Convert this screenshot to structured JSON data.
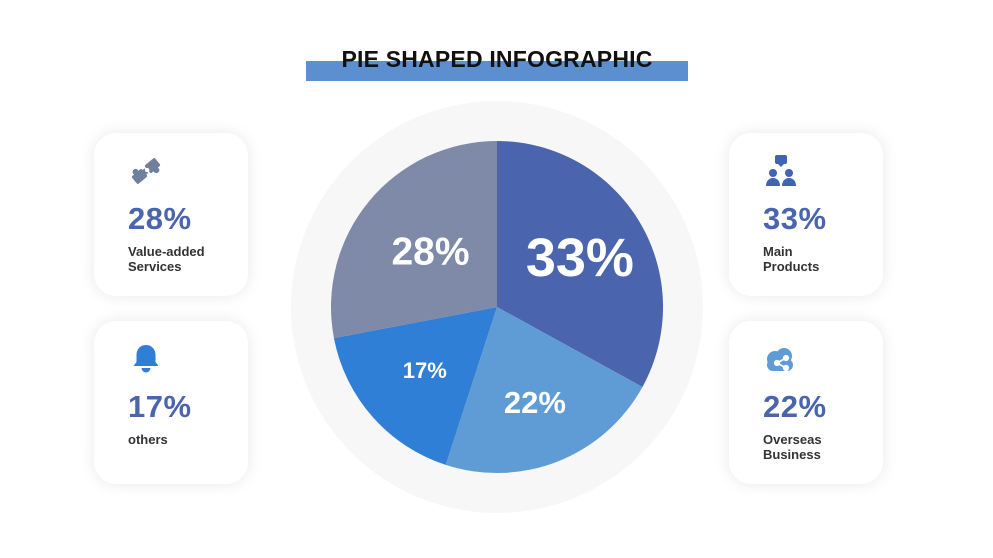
{
  "title": "PIE SHAPED INFOGRAPHIC",
  "cards": {
    "value_added": {
      "percent": "28%",
      "label": "Value-added\nServices",
      "icon": "puzzle-icon"
    },
    "others": {
      "percent": "17%",
      "label": "others",
      "icon": "bell-icon"
    },
    "main_products": {
      "percent": "33%",
      "label": "Main\nProducts",
      "icon": "team-icon"
    },
    "overseas": {
      "percent": "22%",
      "label": "Overseas\nBusiness",
      "icon": "cloud-share-icon"
    }
  },
  "colors": {
    "accent": "#5b8fd0",
    "number": "#4a64ad",
    "icon": "#3f63b5",
    "puzzle_icon": "#6f7f9e"
  },
  "chart_data": {
    "type": "pie",
    "slices": [
      {
        "value": 33,
        "label": "33%",
        "color": "#4a64ad"
      },
      {
        "value": 22,
        "label": "22%",
        "color": "#5f9bd4"
      },
      {
        "value": 17,
        "label": "17%",
        "color": "#2f7fd6"
      },
      {
        "value": 28,
        "label": "28%",
        "color": "#7e8aa7"
      }
    ],
    "start": "12 o'clock",
    "direction": "clockwise"
  }
}
